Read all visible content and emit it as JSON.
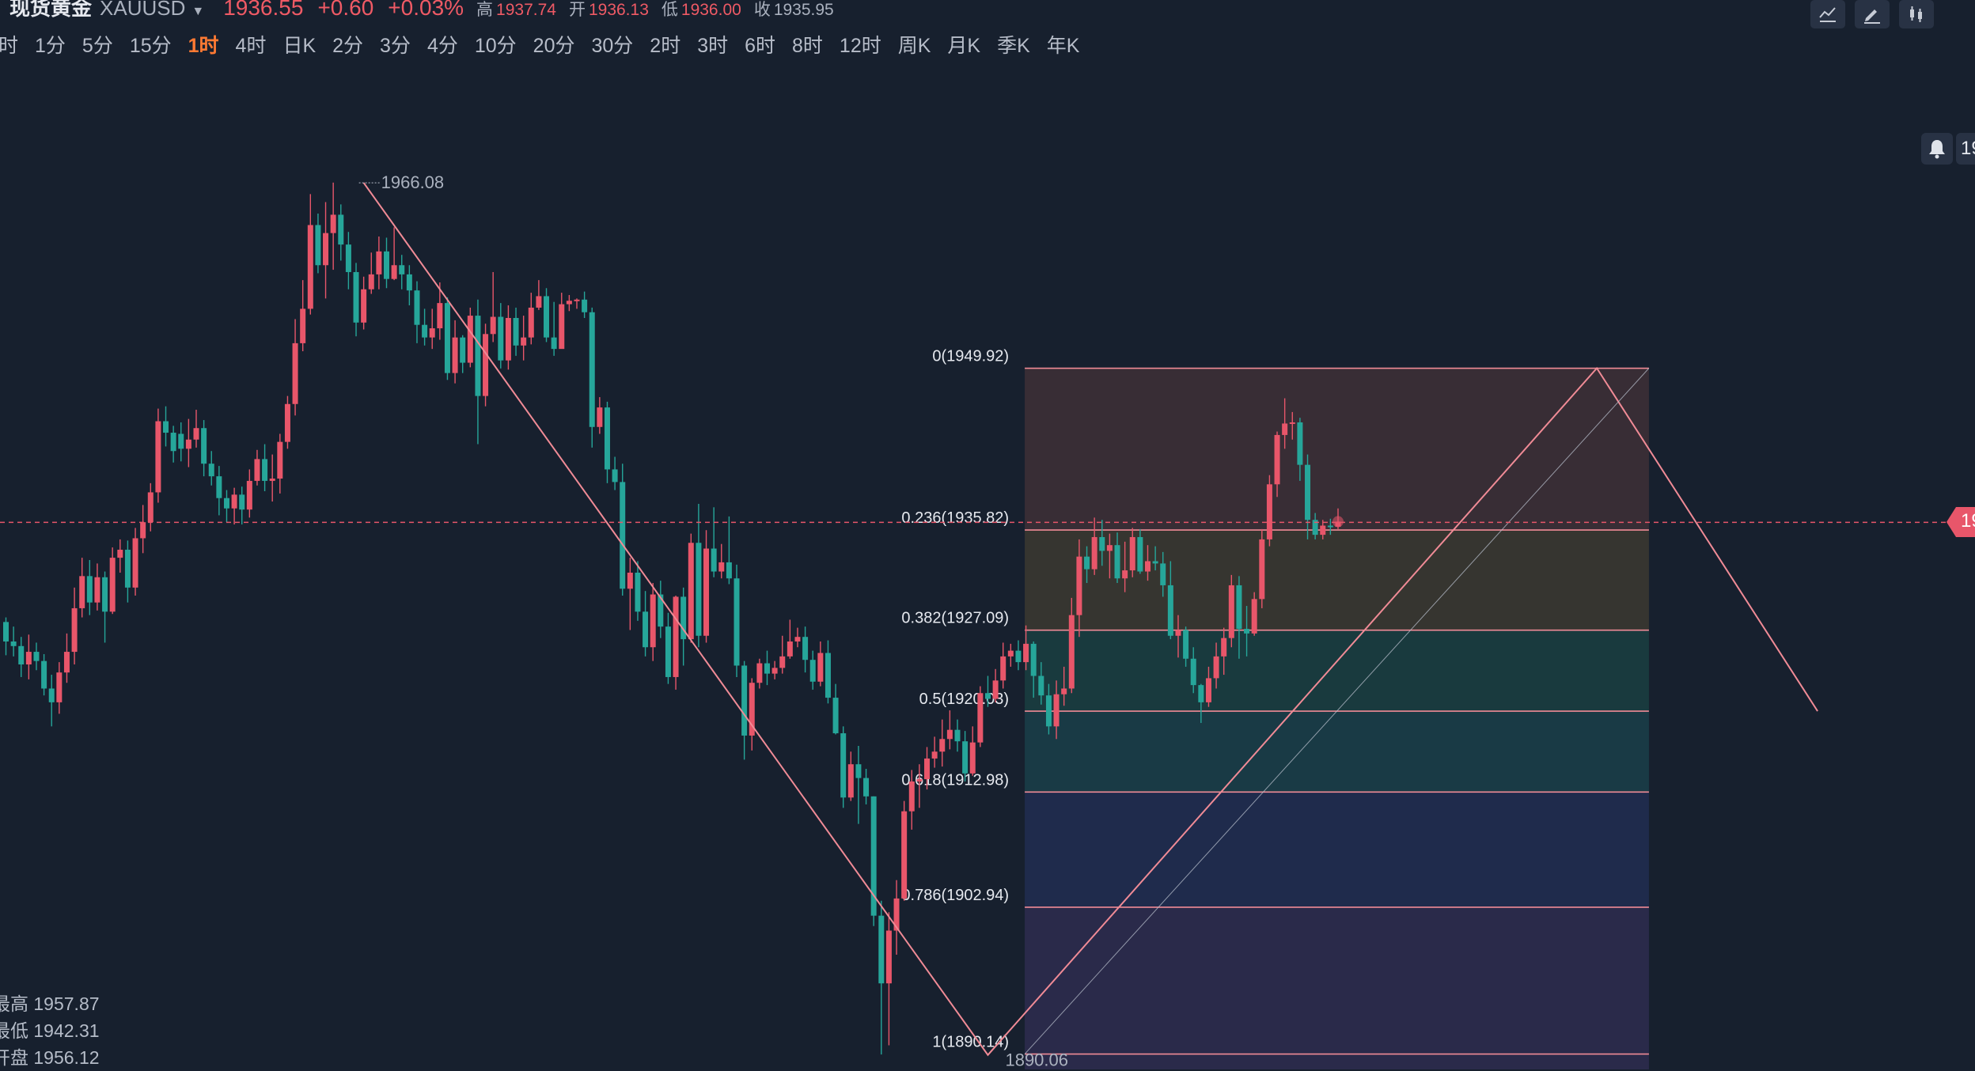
{
  "quote": {
    "name": "现货黄金",
    "code": "XAUUSD",
    "price": "1936.55",
    "change": "+0.60",
    "change_pct": "+0.03%",
    "high_label": "高",
    "high": "1937.74",
    "open_label": "开",
    "open": "1936.13",
    "low_label": "低",
    "low": "1936.00",
    "close_label": "收",
    "close": "1935.95"
  },
  "timeframes": [
    "时",
    "1分",
    "5分",
    "15分",
    "1时",
    "4时",
    "日K",
    "2分",
    "3分",
    "4分",
    "10分",
    "20分",
    "30分",
    "2时",
    "3时",
    "6时",
    "8时",
    "12时",
    "周K",
    "月K",
    "季K",
    "年K"
  ],
  "active_timeframe": "1时",
  "toolbar_icons": [
    "line-tool-icon",
    "pencil-icon",
    "candle-settings-icon"
  ],
  "bell_tab_text": "19",
  "price_tag_text": "19",
  "stats": {
    "high_label": "最高",
    "high": "1957.87",
    "low_label": "最低",
    "low": "1942.31",
    "open_label": "开盘",
    "open": "1956.12"
  },
  "chart_data": {
    "type": "candlestick",
    "symbol": "XAUUSD",
    "interval": "1时",
    "ylim": [
      1888.8,
      1976.5
    ],
    "current_price": 1936.55,
    "colors": {
      "up": "#e8566a",
      "down": "#26a69a",
      "fib_line": "#f08b96",
      "background": "#17202e"
    },
    "high_marker": "1966.08",
    "low_marker": "1890.06",
    "high_value": 1966.08,
    "low_value": 1890.06,
    "candles": [
      [
        1927.8,
        1926.1,
        1928.2,
        1924.9
      ],
      [
        1926.1,
        1925.7,
        1927.4,
        1924.8
      ],
      [
        1925.7,
        1924.1,
        1926.5,
        1923.0
      ],
      [
        1924.1,
        1925.2,
        1926.7,
        1922.8
      ],
      [
        1925.2,
        1924.4,
        1926.0,
        1923.6
      ],
      [
        1924.4,
        1922.0,
        1925.0,
        1921.4
      ],
      [
        1922.0,
        1920.8,
        1923.2,
        1918.7
      ],
      [
        1920.8,
        1923.4,
        1924.3,
        1919.8
      ],
      [
        1923.4,
        1925.2,
        1926.8,
        1922.5
      ],
      [
        1925.2,
        1929.0,
        1930.8,
        1924.1
      ],
      [
        1929.0,
        1931.8,
        1933.4,
        1928.2
      ],
      [
        1931.8,
        1929.5,
        1933.2,
        1928.4
      ],
      [
        1929.5,
        1931.7,
        1932.9,
        1928.8
      ],
      [
        1931.7,
        1928.7,
        1932.2,
        1926.0
      ],
      [
        1928.7,
        1933.4,
        1934.3,
        1928.5
      ],
      [
        1933.4,
        1934.1,
        1935.0,
        1932.1
      ],
      [
        1934.1,
        1930.8,
        1934.9,
        1929.5
      ],
      [
        1930.8,
        1935.1,
        1936.0,
        1930.1
      ],
      [
        1935.1,
        1936.5,
        1938.0,
        1933.8
      ],
      [
        1936.5,
        1939.1,
        1939.9,
        1935.7
      ],
      [
        1939.1,
        1945.3,
        1946.4,
        1938.2
      ],
      [
        1945.3,
        1944.3,
        1946.6,
        1943.1
      ],
      [
        1944.3,
        1942.7,
        1944.9,
        1941.7
      ],
      [
        1944.2,
        1942.9,
        1945.2,
        1941.8
      ],
      [
        1942.9,
        1943.7,
        1945.5,
        1941.3
      ],
      [
        1943.7,
        1944.7,
        1946.3,
        1943.0
      ],
      [
        1944.7,
        1941.6,
        1945.4,
        1940.5
      ],
      [
        1941.6,
        1940.5,
        1942.7,
        1939.7
      ],
      [
        1940.5,
        1938.6,
        1941.4,
        1937.1
      ],
      [
        1938.6,
        1937.7,
        1939.3,
        1936.5
      ],
      [
        1937.7,
        1938.9,
        1939.5,
        1936.3
      ],
      [
        1938.9,
        1937.6,
        1939.6,
        1936.3
      ],
      [
        1937.6,
        1940.1,
        1941.1,
        1936.9
      ],
      [
        1940.1,
        1942.0,
        1942.8,
        1939.7
      ],
      [
        1942.0,
        1940.1,
        1943.3,
        1939.2
      ],
      [
        1940.1,
        1940.3,
        1942.4,
        1938.3
      ],
      [
        1940.3,
        1943.5,
        1944.2,
        1939.0
      ],
      [
        1943.5,
        1946.8,
        1947.5,
        1942.9
      ],
      [
        1946.8,
        1952.1,
        1954.2,
        1945.8
      ],
      [
        1952.1,
        1955.1,
        1957.6,
        1951.4
      ],
      [
        1955.1,
        1962.4,
        1965.1,
        1954.6
      ],
      [
        1962.4,
        1958.9,
        1963.4,
        1958.2
      ],
      [
        1958.9,
        1961.7,
        1964.4,
        1956.0
      ],
      [
        1961.7,
        1963.3,
        1966.1,
        1958.5
      ],
      [
        1963.3,
        1960.7,
        1964.2,
        1959.3
      ],
      [
        1960.7,
        1958.3,
        1961.8,
        1956.8
      ],
      [
        1958.3,
        1953.9,
        1959.1,
        1952.7
      ],
      [
        1953.9,
        1956.8,
        1957.9,
        1953.3
      ],
      [
        1956.8,
        1958.1,
        1960.0,
        1956.4
      ],
      [
        1958.1,
        1960.1,
        1961.4,
        1956.8
      ],
      [
        1960.1,
        1957.7,
        1961.3,
        1956.9
      ],
      [
        1957.7,
        1958.9,
        1962.2,
        1957.6
      ],
      [
        1958.9,
        1958.1,
        1959.8,
        1956.8
      ],
      [
        1958.1,
        1956.7,
        1958.9,
        1955.4
      ],
      [
        1956.7,
        1953.7,
        1957.5,
        1952.1
      ],
      [
        1953.7,
        1952.6,
        1955.1,
        1951.9
      ],
      [
        1952.6,
        1953.4,
        1955.1,
        1951.6
      ],
      [
        1953.4,
        1955.6,
        1957.4,
        1952.4
      ],
      [
        1955.6,
        1949.5,
        1956.1,
        1948.9
      ],
      [
        1949.5,
        1952.6,
        1954.1,
        1948.6
      ],
      [
        1952.6,
        1950.4,
        1952.8,
        1949.5
      ],
      [
        1950.4,
        1954.5,
        1955.2,
        1950.0
      ],
      [
        1954.5,
        1947.5,
        1955.9,
        1943.3
      ],
      [
        1947.5,
        1952.9,
        1953.8,
        1946.6
      ],
      [
        1952.9,
        1954.4,
        1958.3,
        1952.2
      ],
      [
        1954.4,
        1950.6,
        1955.6,
        1949.9
      ],
      [
        1950.6,
        1954.3,
        1955.4,
        1949.8
      ],
      [
        1954.3,
        1951.9,
        1955.2,
        1951.0
      ],
      [
        1951.9,
        1952.6,
        1954.5,
        1950.6
      ],
      [
        1952.6,
        1955.2,
        1956.5,
        1952.0
      ],
      [
        1955.2,
        1956.2,
        1957.6,
        1955.0
      ],
      [
        1956.2,
        1952.6,
        1956.9,
        1952.2
      ],
      [
        1952.6,
        1951.6,
        1955.7,
        1951.0
      ],
      [
        1951.6,
        1955.5,
        1956.5,
        1952.1
      ],
      [
        1955.5,
        1955.8,
        1956.3,
        1954.9
      ],
      [
        1955.8,
        1955.9,
        1956.0,
        1955.1
      ],
      [
        1955.9,
        1954.8,
        1956.6,
        1954.3
      ],
      [
        1954.8,
        1944.8,
        1955.2,
        1943.0
      ],
      [
        1944.8,
        1946.5,
        1947.4,
        1944.2
      ],
      [
        1946.5,
        1941.1,
        1947.0,
        1939.9
      ],
      [
        1941.1,
        1940.0,
        1942.2,
        1939.3
      ],
      [
        1940.0,
        1930.7,
        1941.6,
        1930.1
      ],
      [
        1930.7,
        1932.1,
        1933.4,
        1927.1
      ],
      [
        1932.1,
        1928.7,
        1933.1,
        1927.9
      ],
      [
        1928.7,
        1925.6,
        1930.5,
        1924.8
      ],
      [
        1925.6,
        1930.2,
        1931.2,
        1924.4
      ],
      [
        1930.2,
        1927.4,
        1931.4,
        1926.4
      ],
      [
        1927.4,
        1923.0,
        1928.6,
        1922.4
      ],
      [
        1923.0,
        1930.0,
        1930.1,
        1921.9
      ],
      [
        1930.0,
        1926.3,
        1930.8,
        1924.0
      ],
      [
        1926.3,
        1934.7,
        1935.5,
        1926.0
      ],
      [
        1934.7,
        1926.6,
        1938.1,
        1925.6
      ],
      [
        1926.6,
        1934.2,
        1935.8,
        1926.0
      ],
      [
        1934.2,
        1932.2,
        1937.8,
        1931.7
      ],
      [
        1932.2,
        1933.0,
        1934.6,
        1931.6
      ],
      [
        1933.0,
        1931.6,
        1937.0,
        1931.1
      ],
      [
        1931.6,
        1924.0,
        1932.8,
        1923.0
      ],
      [
        1924.0,
        1917.9,
        1924.4,
        1915.8
      ],
      [
        1917.9,
        1922.5,
        1922.9,
        1916.6
      ],
      [
        1922.5,
        1924.2,
        1924.6,
        1922.0
      ],
      [
        1924.2,
        1923.3,
        1925.3,
        1922.3
      ],
      [
        1923.3,
        1923.8,
        1924.4,
        1922.8
      ],
      [
        1923.8,
        1924.8,
        1926.6,
        1923.3
      ],
      [
        1924.8,
        1926.1,
        1928.0,
        1924.6
      ],
      [
        1926.1,
        1926.5,
        1927.3,
        1925.6
      ],
      [
        1926.5,
        1924.5,
        1927.4,
        1923.4
      ],
      [
        1924.5,
        1922.6,
        1925.3,
        1921.9
      ],
      [
        1922.6,
        1925.1,
        1926.1,
        1922.2
      ],
      [
        1925.1,
        1921.2,
        1926.2,
        1920.7
      ],
      [
        1921.2,
        1918.1,
        1922.4,
        1918.0
      ],
      [
        1918.1,
        1912.5,
        1918.7,
        1911.6
      ],
      [
        1912.5,
        1915.4,
        1916.5,
        1912.2
      ],
      [
        1915.4,
        1914.2,
        1917.0,
        1910.2
      ],
      [
        1914.2,
        1912.6,
        1915.0,
        1911.9
      ],
      [
        1912.6,
        1902.2,
        1912.6,
        1901.3
      ],
      [
        1902.2,
        1896.3,
        1903.5,
        1890.1
      ],
      [
        1896.3,
        1900.9,
        1902.5,
        1890.9
      ],
      [
        1900.9,
        1903.7,
        1905.3,
        1898.8
      ],
      [
        1903.7,
        1911.3,
        1912.2,
        1903.5
      ],
      [
        1911.3,
        1913.9,
        1914.9,
        1909.7
      ],
      [
        1913.9,
        1914.1,
        1915.4,
        1911.6
      ],
      [
        1914.1,
        1915.9,
        1916.9,
        1913.2
      ],
      [
        1915.9,
        1916.5,
        1917.8,
        1915.1
      ],
      [
        1916.5,
        1917.6,
        1919.3,
        1915.2
      ],
      [
        1917.6,
        1918.4,
        1920.1,
        1916.7
      ],
      [
        1918.4,
        1917.4,
        1919.3,
        1916.5
      ],
      [
        1917.4,
        1914.6,
        1918.3,
        1913.9
      ],
      [
        1914.6,
        1917.3,
        1918.7,
        1914.4
      ],
      [
        1917.3,
        1921.6,
        1922.2,
        1916.9
      ],
      [
        1921.6,
        1921.1,
        1923.1,
        1920.4
      ],
      [
        1921.1,
        1922.7,
        1923.7,
        1920.8
      ],
      [
        1922.7,
        1924.8,
        1926.0,
        1922.0
      ],
      [
        1924.8,
        1925.3,
        1925.9,
        1923.9
      ],
      [
        1925.3,
        1924.3,
        1926.2,
        1923.6
      ],
      [
        1924.3,
        1925.9,
        1927.5,
        1923.6
      ],
      [
        1925.9,
        1923.1,
        1926.1,
        1921.2
      ],
      [
        1923.1,
        1921.4,
        1924.3,
        1920.6
      ],
      [
        1921.4,
        1918.7,
        1922.4,
        1918.0
      ],
      [
        1918.7,
        1921.5,
        1922.7,
        1917.6
      ],
      [
        1921.5,
        1922.0,
        1923.9,
        1920.5
      ],
      [
        1922.0,
        1928.4,
        1929.9,
        1921.6
      ],
      [
        1928.4,
        1933.5,
        1935.0,
        1926.5
      ],
      [
        1933.5,
        1932.4,
        1934.4,
        1931.2
      ],
      [
        1932.4,
        1935.2,
        1936.9,
        1931.9
      ],
      [
        1935.2,
        1934.0,
        1936.7,
        1932.7
      ],
      [
        1934.0,
        1934.5,
        1935.5,
        1931.6
      ],
      [
        1934.5,
        1931.6,
        1935.6,
        1931.2
      ],
      [
        1931.6,
        1932.3,
        1934.8,
        1930.4
      ],
      [
        1932.3,
        1935.2,
        1936.0,
        1931.7
      ],
      [
        1935.2,
        1932.2,
        1935.9,
        1932.0
      ],
      [
        1932.2,
        1933.1,
        1934.5,
        1931.4
      ],
      [
        1933.1,
        1932.9,
        1934.4,
        1932.3
      ],
      [
        1932.9,
        1931.0,
        1933.9,
        1930.0
      ],
      [
        1931.0,
        1926.6,
        1933.1,
        1926.3
      ],
      [
        1926.6,
        1927.1,
        1928.4,
        1924.7
      ],
      [
        1927.1,
        1924.6,
        1927.4,
        1923.9
      ],
      [
        1924.6,
        1922.3,
        1925.6,
        1921.6
      ],
      [
        1922.3,
        1920.8,
        1922.4,
        1919.0
      ],
      [
        1920.8,
        1922.9,
        1923.9,
        1920.4
      ],
      [
        1922.9,
        1924.8,
        1926.0,
        1922.0
      ],
      [
        1924.8,
        1926.4,
        1927.3,
        1923.2
      ],
      [
        1926.4,
        1931.0,
        1931.9,
        1925.6
      ],
      [
        1931.0,
        1927.2,
        1931.8,
        1924.6
      ],
      [
        1927.2,
        1926.8,
        1929.2,
        1924.8
      ],
      [
        1926.8,
        1929.8,
        1930.4,
        1926.6
      ],
      [
        1929.8,
        1935.0,
        1935.9,
        1929.0
      ],
      [
        1935.0,
        1939.8,
        1940.6,
        1934.4
      ],
      [
        1939.8,
        1944.1,
        1944.4,
        1938.7
      ],
      [
        1944.1,
        1945.1,
        1947.3,
        1942.9
      ],
      [
        1945.1,
        1945.2,
        1946.1,
        1943.7
      ],
      [
        1945.2,
        1941.5,
        1945.6,
        1940.1
      ],
      [
        1941.5,
        1936.7,
        1942.4,
        1935.0
      ],
      [
        1936.7,
        1935.4,
        1937.3,
        1935.0
      ],
      [
        1935.4,
        1936.2,
        1936.7,
        1935.0
      ],
      [
        1936.2,
        1936.1,
        1936.8,
        1935.4
      ],
      [
        1936.1,
        1936.55,
        1937.7,
        1935.9
      ]
    ],
    "fib_retracement": {
      "levels": [
        {
          "ratio": "0",
          "price": 1949.92,
          "label": "0(1949.92)",
          "fill": "#382d35"
        },
        {
          "ratio": "0.236",
          "price": 1935.82,
          "label": "0.236(1935.82)",
          "fill": "#363530"
        },
        {
          "ratio": "0.382",
          "price": 1927.09,
          "label": "0.382(1927.09)",
          "fill": "#193a3e"
        },
        {
          "ratio": "0.5",
          "price": 1920.03,
          "label": "0.5(1920.03)",
          "fill": "#193a45"
        },
        {
          "ratio": "0.618",
          "price": 1912.98,
          "label": "0.618(1912.98)",
          "fill": "#1f2b4c"
        },
        {
          "ratio": "0.786",
          "price": 1902.94,
          "label": "0.786(1902.94)",
          "fill": "#2a2a4a"
        },
        {
          "ratio": "1",
          "price": 1890.14,
          "label": "1(1890.14)",
          "fill": "#2a2a4a"
        }
      ],
      "trend_start_candle": 134,
      "trend_end_candle": 216
    },
    "drawing_points": [
      {
        "candle": 47,
        "price": 1966.08
      },
      {
        "candle": 129,
        "price": 1890.06
      },
      {
        "candle": 209,
        "price": 1949.92
      },
      {
        "candle": 238,
        "price": 1920.03
      }
    ]
  }
}
